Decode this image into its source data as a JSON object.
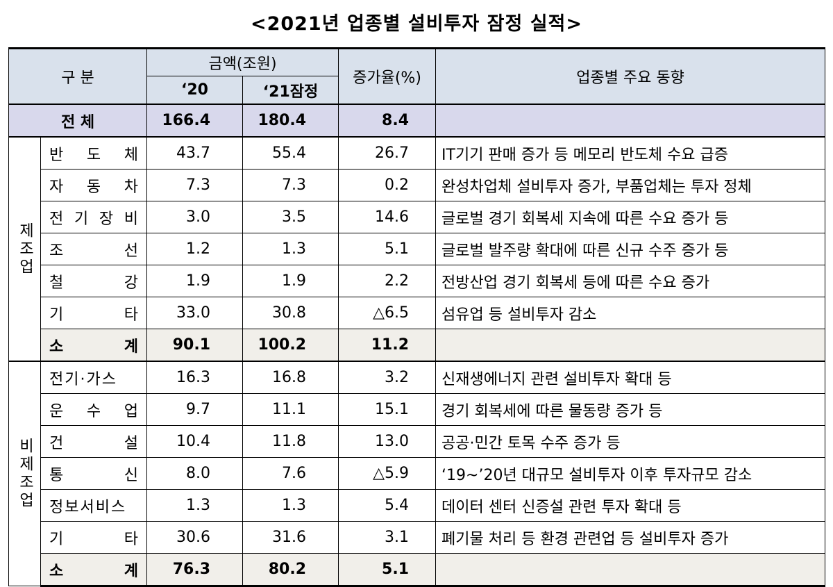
{
  "title": "<2021년 업종별 설비투자 잠정 실적>",
  "header": {
    "category": "구 분",
    "amount": "금액(조원)",
    "year_2020": "‘20",
    "year_2021": "‘21잠정",
    "rate": "증가율(%)",
    "trend": "업종별 주요 동향"
  },
  "total": {
    "name": "전 체",
    "y2020": "166.4",
    "y2021": "180.4",
    "rate": "8.4",
    "trend": ""
  },
  "manufacturing": {
    "group_label": "제조업",
    "rows": [
      {
        "name": "반 도 체",
        "y2020": "43.7",
        "y2021": "55.4",
        "rate": "26.7",
        "trend": "IT기기 판매 증가 등 메모리 반도체 수요 급증"
      },
      {
        "name": "자 동 차",
        "y2020": "7.3",
        "y2021": "7.3",
        "rate": "0.2",
        "trend": "완성차업체 설비투자 증가, 부품업체는 투자 정체"
      },
      {
        "name": "전 기 장 비",
        "y2020": "3.0",
        "y2021": "3.5",
        "rate": "14.6",
        "trend": "글로벌 경기 회복세 지속에 따른 수요 증가 등"
      },
      {
        "name": "조 선",
        "y2020": "1.2",
        "y2021": "1.3",
        "rate": "5.1",
        "trend": "글로벌 발주량 확대에 따른 신규 수주 증가 등"
      },
      {
        "name": "철 강",
        "y2020": "1.9",
        "y2021": "1.9",
        "rate": "2.2",
        "trend": "전방산업 경기 회복세 등에 따른 수요 증가"
      },
      {
        "name": "기 타",
        "y2020": "33.0",
        "y2021": "30.8",
        "rate": "△6.5",
        "trend": "섬유업 등 설비투자 감소"
      }
    ],
    "subtotal": {
      "name": "소 계",
      "y2020": "90.1",
      "y2021": "100.2",
      "rate": "11.2",
      "trend": ""
    }
  },
  "non_manufacturing": {
    "group_label": "비제조업",
    "rows": [
      {
        "name": "전기·가스",
        "y2020": "16.3",
        "y2021": "16.8",
        "rate": "3.2",
        "trend": "신재생에너지 관련 설비투자 확대 등"
      },
      {
        "name": "운 수 업",
        "y2020": "9.7",
        "y2021": "11.1",
        "rate": "15.1",
        "trend": "경기 회복세에 따른 물동량 증가 등"
      },
      {
        "name": "건 설",
        "y2020": "10.4",
        "y2021": "11.8",
        "rate": "13.0",
        "trend": "공공·민간 토목 수주 증가 등"
      },
      {
        "name": "통 신",
        "y2020": "8.0",
        "y2021": "7.6",
        "rate": "△5.9",
        "trend": "‘19~’20년 대규모 설비투자 이후 투자규모 감소"
      },
      {
        "name": "정보서비스",
        "y2020": "1.3",
        "y2021": "1.3",
        "rate": "5.4",
        "trend": "데이터 센터 신증설 관련 투자 확대 등"
      },
      {
        "name": "기 타",
        "y2020": "30.6",
        "y2021": "31.6",
        "rate": "3.1",
        "trend": "폐기물 처리 등 환경 관련업 등 설비투자 증가"
      }
    ],
    "subtotal": {
      "name": "소 계",
      "y2020": "76.3",
      "y2021": "80.2",
      "rate": "5.1",
      "trend": ""
    }
  }
}
